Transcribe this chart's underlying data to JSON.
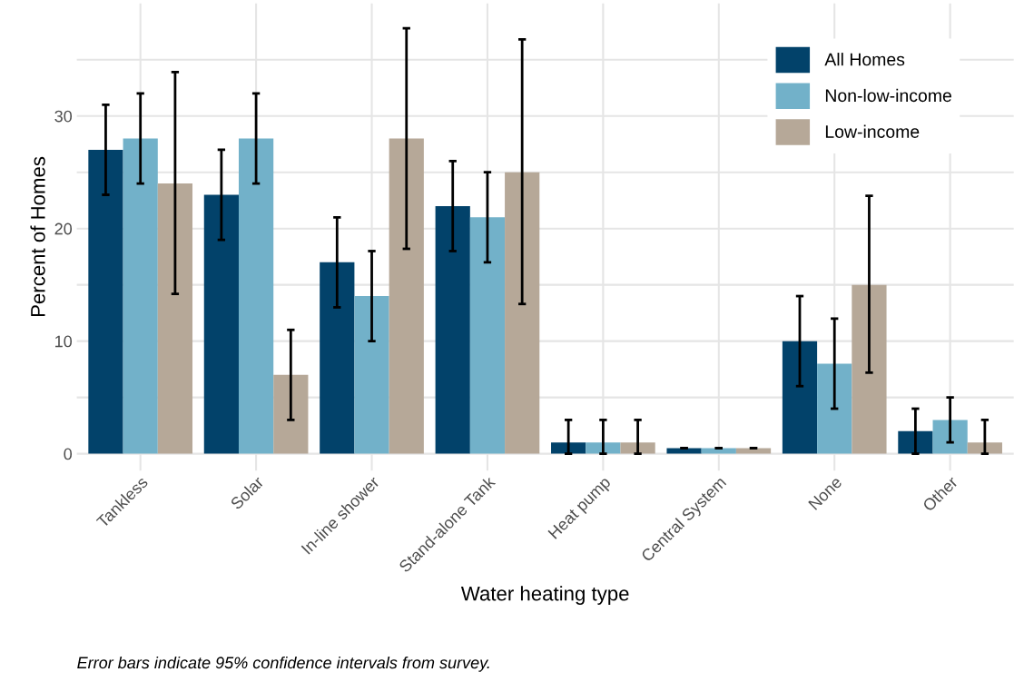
{
  "chart_data": {
    "type": "bar",
    "xlabel": "Water heating type",
    "ylabel": "Percent of Homes",
    "categories": [
      "Tankless",
      "Solar",
      "In-line shower",
      "Stand-alone Tank",
      "Heat pump",
      "Central System",
      "None",
      "Other"
    ],
    "series": [
      {
        "name": "All Homes",
        "color": "#02426a",
        "values": [
          27,
          23,
          17,
          22,
          1,
          0.5,
          10,
          2
        ],
        "errors": [
          [
            23,
            31
          ],
          [
            19,
            27
          ],
          [
            13,
            21
          ],
          [
            18,
            26
          ],
          [
            0,
            3
          ],
          [
            0.5,
            0.5
          ],
          [
            6,
            14
          ],
          [
            0,
            4
          ]
        ]
      },
      {
        "name": "Non-low-income",
        "color": "#72b1c9",
        "values": [
          28,
          28,
          14,
          21,
          1,
          0.5,
          8,
          3
        ],
        "errors": [
          [
            24,
            32
          ],
          [
            24,
            32
          ],
          [
            10,
            18
          ],
          [
            17,
            25
          ],
          [
            0,
            3
          ],
          [
            0.5,
            0.5
          ],
          [
            4,
            12
          ],
          [
            1,
            5
          ]
        ]
      },
      {
        "name": "Low-income",
        "color": "#b6a898",
        "values": [
          24,
          7,
          28,
          25,
          1,
          0.5,
          15,
          1
        ],
        "errors": [
          [
            14.2,
            33.9
          ],
          [
            3,
            11
          ],
          [
            18.2,
            37.8
          ],
          [
            13.3,
            36.8
          ],
          [
            0,
            3
          ],
          [
            0.5,
            0.5
          ],
          [
            7.2,
            22.9
          ],
          [
            0,
            3
          ]
        ]
      }
    ],
    "ylim": [
      -1.5,
      40
    ],
    "yticks": [
      0,
      {
        "value": 5,
        "label": null
      },
      10,
      {
        "value": 15,
        "label": null
      },
      20,
      {
        "value": 25,
        "label": null
      },
      30,
      {
        "value": 35,
        "label": null
      }
    ],
    "grid": true,
    "legend": "top right",
    "annotations": [
      "Error bars indicate 95% confidence intervals from survey."
    ]
  }
}
